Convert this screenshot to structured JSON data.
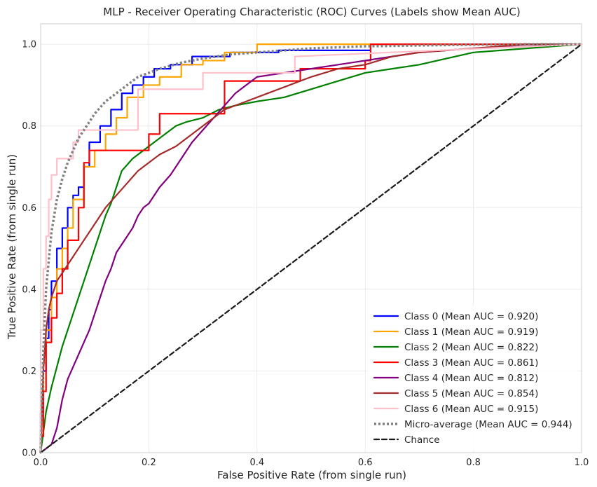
{
  "chart_data": {
    "type": "line",
    "title": "MLP - Receiver Operating Characteristic (ROC) Curves (Labels show Mean AUC)",
    "xlabel": "False Positive Rate (from single run)",
    "ylabel": "True Positive Rate (from single run)",
    "xlim": [
      0,
      1
    ],
    "ylim": [
      0,
      1.05
    ],
    "xticks": [
      "0.0",
      "0.2",
      "0.4",
      "0.6",
      "0.8",
      "1.0"
    ],
    "yticks": [
      "0.0",
      "0.2",
      "0.4",
      "0.6",
      "0.8",
      "1.0"
    ],
    "grid": true,
    "legend_position": "lower-right",
    "series": [
      {
        "name": "Class 0 (Mean AUC = 0.920)",
        "color": "#0000ff",
        "style": "solid",
        "x": [
          0,
          0,
          0.005,
          0.005,
          0.01,
          0.01,
          0.015,
          0.015,
          0.02,
          0.02,
          0.03,
          0.03,
          0.04,
          0.04,
          0.05,
          0.05,
          0.06,
          0.06,
          0.07,
          0.07,
          0.08,
          0.08,
          0.09,
          0.09,
          0.11,
          0.11,
          0.13,
          0.13,
          0.15,
          0.15,
          0.17,
          0.17,
          0.19,
          0.19,
          0.21,
          0.21,
          0.24,
          0.24,
          0.28,
          0.28,
          0.35,
          0.35,
          0.44,
          0.44,
          0.61,
          0.61,
          1
        ],
        "y": [
          0,
          0.1,
          0.1,
          0.2,
          0.2,
          0.28,
          0.28,
          0.35,
          0.35,
          0.42,
          0.42,
          0.5,
          0.5,
          0.55,
          0.55,
          0.6,
          0.6,
          0.63,
          0.63,
          0.65,
          0.65,
          0.7,
          0.7,
          0.76,
          0.76,
          0.8,
          0.8,
          0.84,
          0.84,
          0.88,
          0.88,
          0.9,
          0.9,
          0.92,
          0.92,
          0.94,
          0.94,
          0.95,
          0.95,
          0.97,
          0.97,
          0.98,
          0.98,
          0.985,
          0.985,
          1.0,
          1.0
        ]
      },
      {
        "name": "Class 1 (Mean AUC = 0.919)",
        "color": "#ffa500",
        "style": "solid",
        "x": [
          0,
          0,
          0.005,
          0.005,
          0.01,
          0.01,
          0.02,
          0.02,
          0.03,
          0.03,
          0.04,
          0.04,
          0.05,
          0.05,
          0.06,
          0.06,
          0.08,
          0.08,
          0.1,
          0.1,
          0.12,
          0.12,
          0.14,
          0.14,
          0.16,
          0.16,
          0.19,
          0.19,
          0.22,
          0.22,
          0.26,
          0.26,
          0.3,
          0.3,
          0.34,
          0.34,
          0.4,
          0.4,
          1
        ],
        "y": [
          0,
          0.15,
          0.15,
          0.22,
          0.22,
          0.3,
          0.3,
          0.38,
          0.38,
          0.45,
          0.45,
          0.5,
          0.5,
          0.55,
          0.55,
          0.62,
          0.62,
          0.7,
          0.7,
          0.74,
          0.74,
          0.78,
          0.78,
          0.82,
          0.82,
          0.87,
          0.87,
          0.9,
          0.9,
          0.92,
          0.92,
          0.95,
          0.95,
          0.96,
          0.96,
          0.98,
          0.98,
          1.0,
          1.0
        ]
      },
      {
        "name": "Class 2 (Mean AUC = 0.822)",
        "color": "#008000",
        "style": "solid",
        "x": [
          0,
          0.01,
          0.02,
          0.03,
          0.04,
          0.05,
          0.06,
          0.07,
          0.08,
          0.09,
          0.1,
          0.11,
          0.12,
          0.13,
          0.14,
          0.15,
          0.17,
          0.19,
          0.21,
          0.23,
          0.25,
          0.27,
          0.3,
          0.33,
          0.36,
          0.4,
          0.45,
          0.5,
          0.55,
          0.6,
          0.65,
          0.7,
          0.8,
          0.9,
          1
        ],
        "y": [
          0,
          0.1,
          0.16,
          0.21,
          0.26,
          0.3,
          0.34,
          0.38,
          0.42,
          0.46,
          0.5,
          0.54,
          0.58,
          0.61,
          0.65,
          0.69,
          0.72,
          0.74,
          0.76,
          0.78,
          0.8,
          0.81,
          0.82,
          0.84,
          0.85,
          0.86,
          0.87,
          0.89,
          0.91,
          0.93,
          0.94,
          0.95,
          0.98,
          0.99,
          1.0
        ]
      },
      {
        "name": "Class 3 (Mean AUC = 0.861)",
        "color": "#ff0000",
        "style": "solid",
        "x": [
          0,
          0,
          0.005,
          0.005,
          0.01,
          0.01,
          0.02,
          0.02,
          0.03,
          0.03,
          0.04,
          0.04,
          0.05,
          0.05,
          0.07,
          0.07,
          0.08,
          0.08,
          0.09,
          0.09,
          0.14,
          0.14,
          0.2,
          0.2,
          0.22,
          0.22,
          0.3,
          0.3,
          0.34,
          0.34,
          0.48,
          0.48,
          0.6,
          0.6,
          0.61,
          0.61,
          1
        ],
        "y": [
          0,
          0.04,
          0.04,
          0.15,
          0.15,
          0.27,
          0.27,
          0.33,
          0.33,
          0.39,
          0.39,
          0.45,
          0.45,
          0.52,
          0.52,
          0.6,
          0.6,
          0.71,
          0.71,
          0.74,
          0.74,
          0.74,
          0.74,
          0.78,
          0.78,
          0.83,
          0.83,
          0.83,
          0.83,
          0.91,
          0.91,
          0.94,
          0.94,
          0.96,
          0.96,
          1.0,
          1.0
        ]
      },
      {
        "name": "Class 4 (Mean AUC = 0.812)",
        "color": "#800080",
        "style": "solid",
        "x": [
          0,
          0.02,
          0.03,
          0.04,
          0.05,
          0.06,
          0.07,
          0.08,
          0.09,
          0.1,
          0.11,
          0.12,
          0.13,
          0.14,
          0.15,
          0.16,
          0.17,
          0.18,
          0.19,
          0.2,
          0.22,
          0.24,
          0.26,
          0.28,
          0.3,
          0.32,
          0.34,
          0.36,
          0.38,
          0.4,
          0.45,
          0.5,
          0.55,
          0.6,
          0.65,
          0.7,
          0.8,
          1
        ],
        "y": [
          0,
          0.02,
          0.06,
          0.13,
          0.18,
          0.21,
          0.24,
          0.27,
          0.3,
          0.34,
          0.38,
          0.42,
          0.45,
          0.49,
          0.51,
          0.53,
          0.55,
          0.58,
          0.6,
          0.61,
          0.65,
          0.68,
          0.72,
          0.76,
          0.79,
          0.82,
          0.85,
          0.88,
          0.9,
          0.92,
          0.93,
          0.94,
          0.95,
          0.96,
          0.97,
          0.98,
          0.99,
          1.0
        ]
      },
      {
        "name": "Class 5 (Mean AUC = 0.854)",
        "color": "#a52a2a",
        "style": "solid",
        "x": [
          0,
          0.005,
          0.01,
          0.015,
          0.02,
          0.03,
          0.04,
          0.05,
          0.06,
          0.07,
          0.08,
          0.1,
          0.12,
          0.14,
          0.16,
          0.18,
          0.2,
          0.22,
          0.25,
          0.28,
          0.31,
          0.34,
          0.38,
          0.42,
          0.46,
          0.5,
          0.55,
          0.6,
          0.65,
          0.7,
          0.75,
          0.8,
          0.85,
          0.9,
          0.95,
          1
        ],
        "y": [
          0,
          0.2,
          0.3,
          0.35,
          0.38,
          0.42,
          0.44,
          0.46,
          0.48,
          0.5,
          0.52,
          0.56,
          0.6,
          0.63,
          0.66,
          0.69,
          0.71,
          0.73,
          0.75,
          0.78,
          0.81,
          0.84,
          0.86,
          0.88,
          0.9,
          0.92,
          0.94,
          0.95,
          0.97,
          0.98,
          0.985,
          0.99,
          0.995,
          1.0,
          1.0,
          1.0
        ]
      },
      {
        "name": "Class 6 (Mean AUC = 0.915)",
        "color": "#ffc0cb",
        "style": "solid",
        "x": [
          0,
          0,
          0.005,
          0.005,
          0.01,
          0.01,
          0.015,
          0.015,
          0.02,
          0.02,
          0.03,
          0.03,
          0.04,
          0.04,
          0.06,
          0.06,
          0.07,
          0.07,
          0.12,
          0.12,
          0.17,
          0.17,
          0.18,
          0.18,
          0.3,
          0.3,
          0.47,
          0.47,
          1
        ],
        "y": [
          0,
          0.3,
          0.3,
          0.45,
          0.45,
          0.53,
          0.53,
          0.62,
          0.62,
          0.68,
          0.68,
          0.72,
          0.72,
          0.72,
          0.72,
          0.76,
          0.76,
          0.79,
          0.79,
          0.79,
          0.79,
          0.79,
          0.79,
          0.89,
          0.89,
          0.93,
          0.93,
          0.97,
          1.0
        ]
      },
      {
        "name": "Micro-average (Mean AUC = 0.944)",
        "color": "#808080",
        "style": "dotted",
        "x": [
          0,
          0.005,
          0.01,
          0.02,
          0.03,
          0.04,
          0.05,
          0.06,
          0.07,
          0.08,
          0.1,
          0.12,
          0.15,
          0.18,
          0.22,
          0.26,
          0.3,
          0.35,
          0.4,
          0.5,
          0.6,
          0.7,
          0.8,
          0.9,
          1
        ],
        "y": [
          0,
          0.25,
          0.4,
          0.54,
          0.62,
          0.67,
          0.71,
          0.74,
          0.77,
          0.79,
          0.83,
          0.86,
          0.89,
          0.92,
          0.94,
          0.955,
          0.965,
          0.975,
          0.98,
          0.99,
          0.995,
          0.997,
          0.999,
          1.0,
          1.0
        ]
      },
      {
        "name": "Chance",
        "color": "#1a1a1a",
        "style": "dashed",
        "x": [
          0,
          1
        ],
        "y": [
          0,
          1
        ]
      }
    ]
  }
}
